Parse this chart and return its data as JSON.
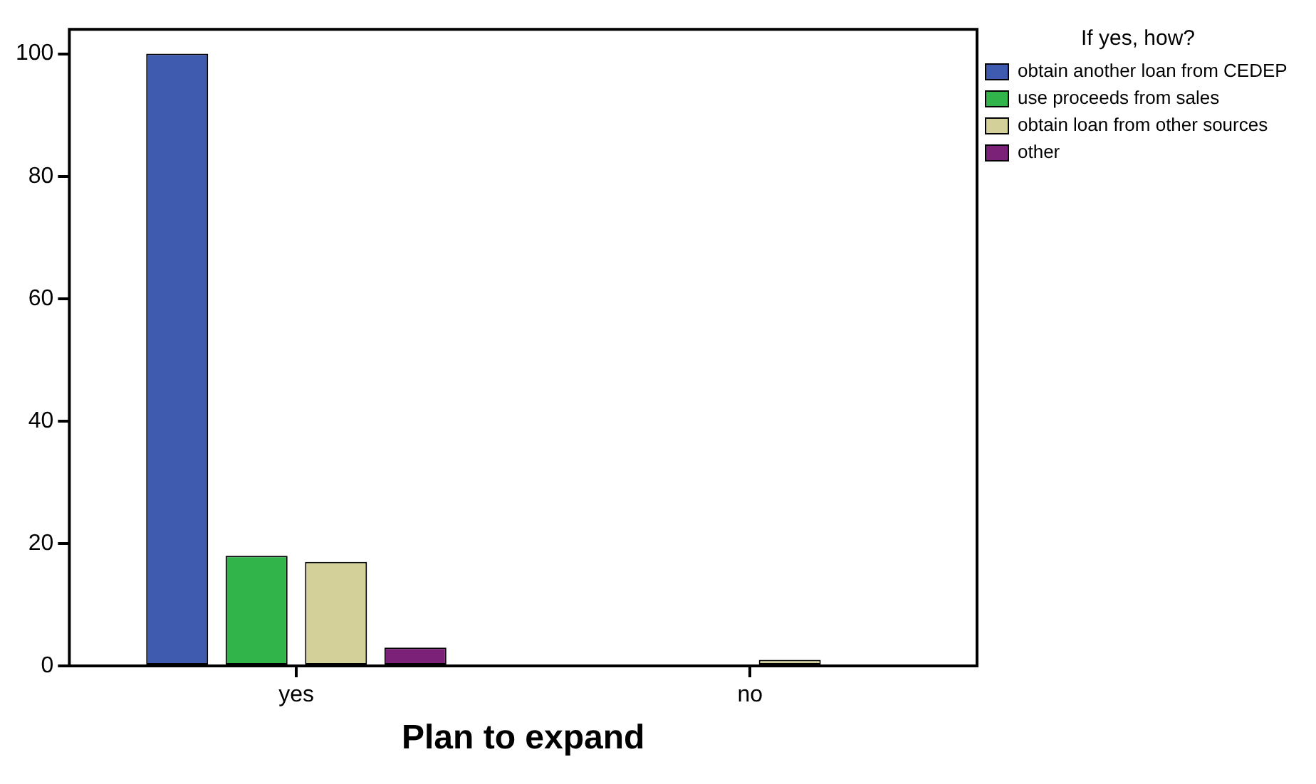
{
  "chart_data": {
    "type": "bar",
    "xlabel": "Plan to expand",
    "legend_title": "If yes, how?",
    "categories": [
      "yes",
      "no"
    ],
    "series": [
      {
        "name": "obtain another loan from CEDEP",
        "color": "#3f5bb0",
        "values": [
          100,
          0
        ]
      },
      {
        "name": "use proceeds from sales",
        "color": "#31b54a",
        "values": [
          18,
          0
        ]
      },
      {
        "name": "obtain loan from other sources",
        "color": "#d4d09a",
        "values": [
          17,
          1
        ]
      },
      {
        "name": "other",
        "color": "#7b2178",
        "values": [
          3,
          0
        ]
      }
    ],
    "ylim": [
      0,
      104
    ],
    "yticks": [
      0,
      20,
      40,
      60,
      80,
      100
    ],
    "grid": false,
    "legend": "right"
  }
}
